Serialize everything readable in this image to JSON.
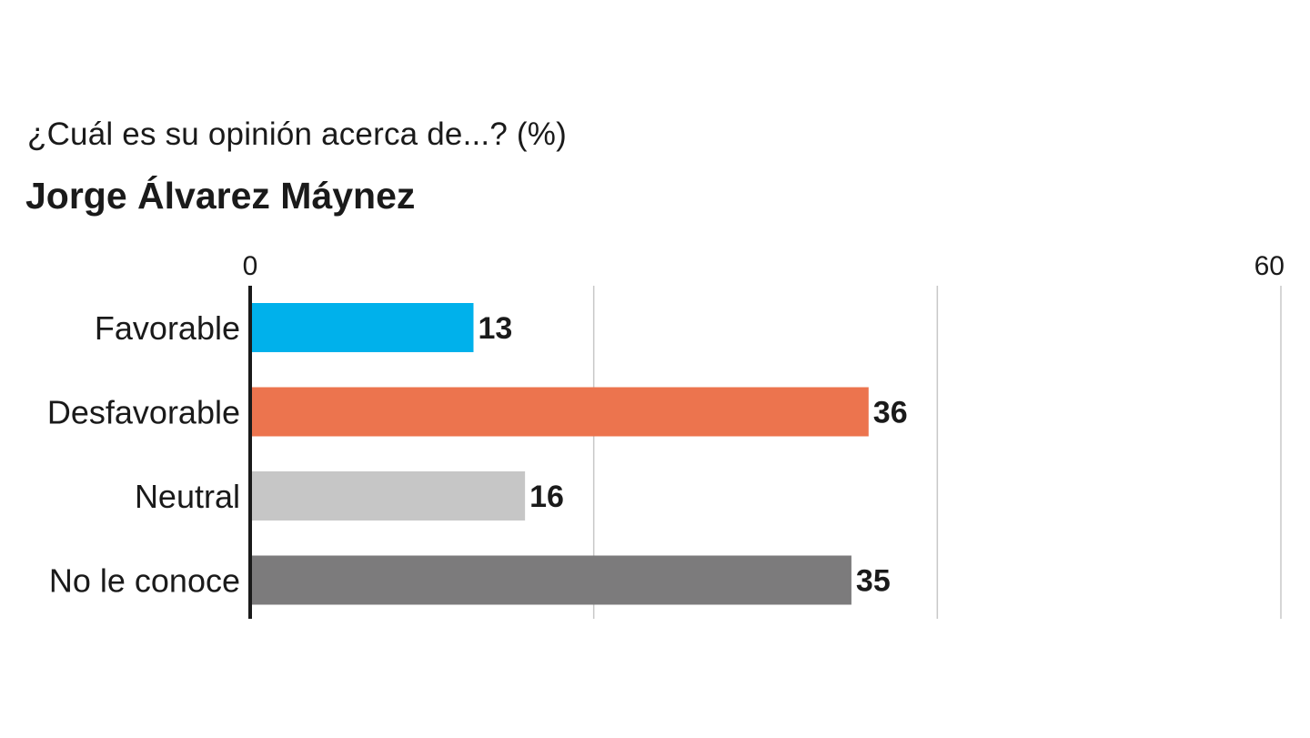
{
  "chart_data": {
    "type": "bar",
    "orientation": "horizontal",
    "subtitle": "¿Cuál es su opinión acerca de...? (%)",
    "title": "Jorge Álvarez Máynez",
    "categories": [
      "Favorable",
      "Desfavorable",
      "Neutral",
      "No le conoce"
    ],
    "values": [
      13,
      36,
      16,
      35
    ],
    "value_labels": [
      "13",
      "36",
      "16",
      "35"
    ],
    "colors": [
      "#00b1eb",
      "#ec744e",
      "#c6c6c6",
      "#7c7b7c"
    ],
    "xlim": [
      0,
      60
    ],
    "gridlines": [
      20,
      40,
      60
    ],
    "tick_labels": [
      {
        "value": 0,
        "label": "0"
      },
      {
        "value": 60,
        "label": "60"
      }
    ],
    "grid": true
  }
}
